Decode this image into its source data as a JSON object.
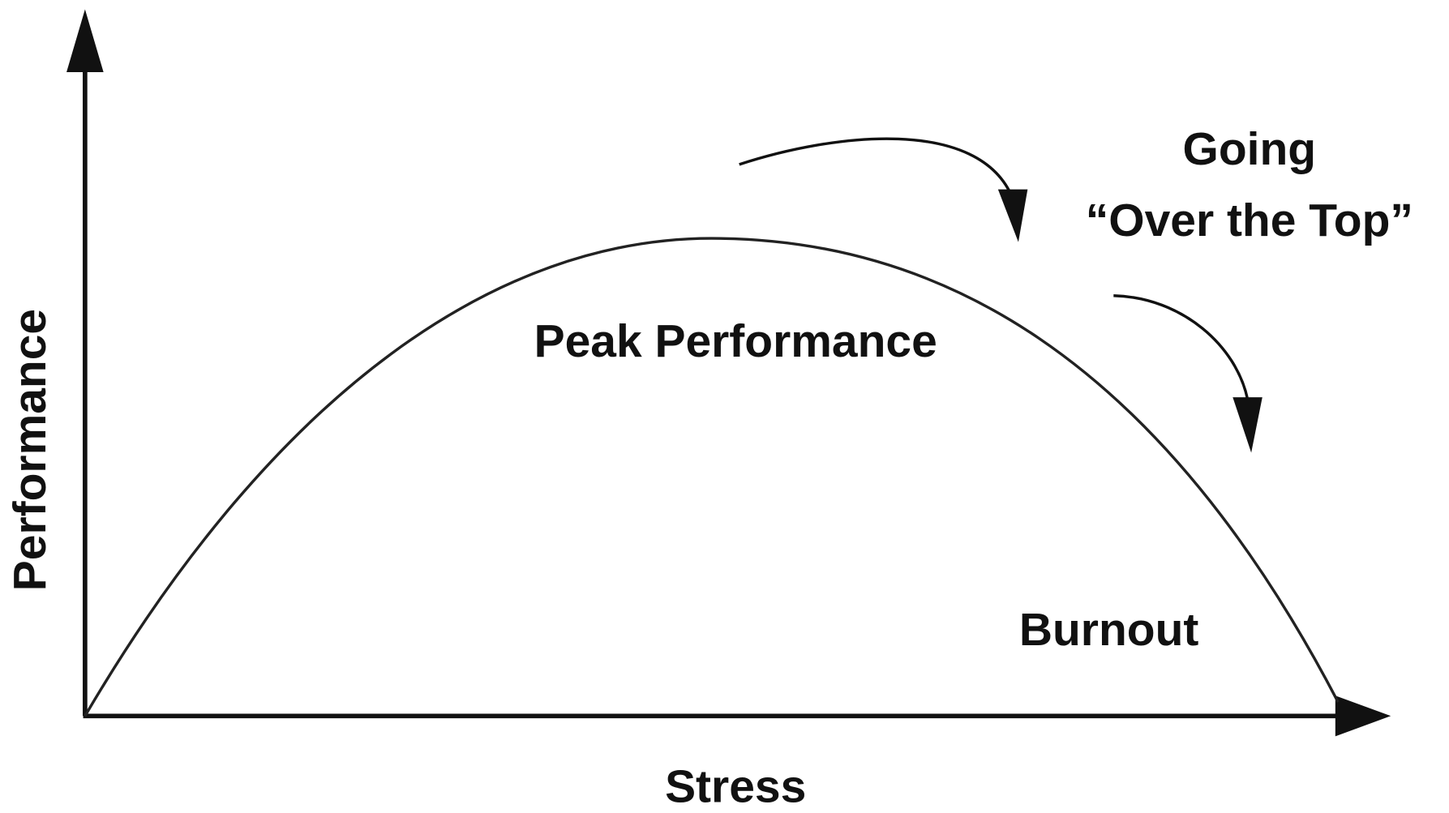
{
  "axes": {
    "x_label": "Stress",
    "y_label": "Performance"
  },
  "annotations": {
    "peak": "Peak Performance",
    "going": "Going",
    "over_the_top": "“Over the Top”",
    "burnout": "Burnout"
  }
}
